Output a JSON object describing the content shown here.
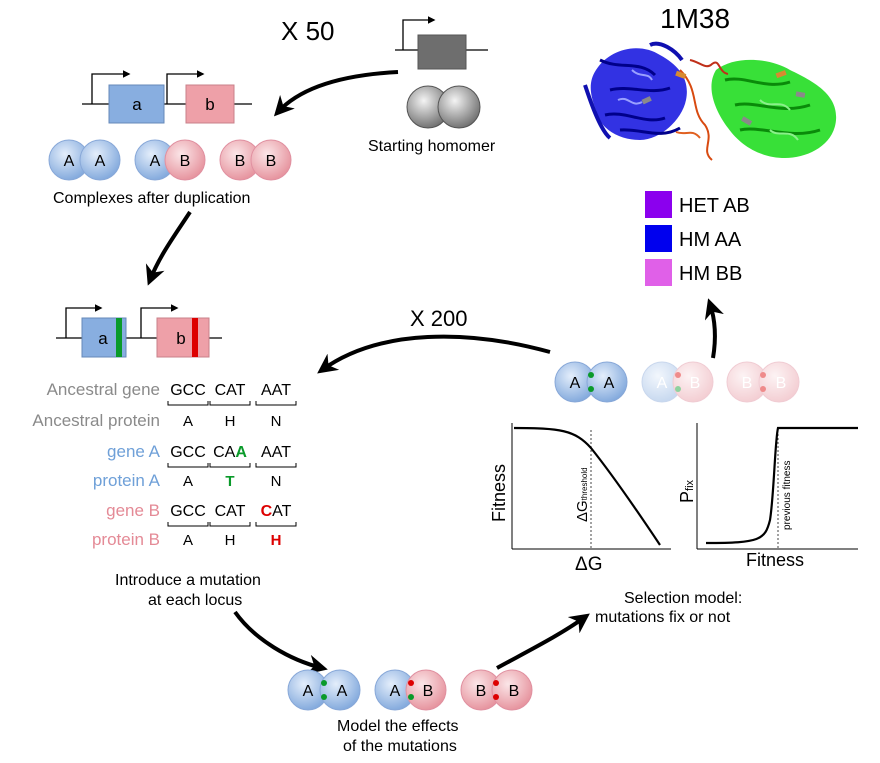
{
  "labels": {
    "x50": "X 50",
    "x200": "X 200",
    "pdb_id": "1M38",
    "starting_homomer": "Starting homomer",
    "complexes_after_duplication": "Complexes after duplication",
    "gene_a": "a",
    "gene_b": "b",
    "subunit_a": "A",
    "subunit_b": "B",
    "introduce_line1": "Introduce a mutation",
    "introduce_line2": "at each locus",
    "model_line1": "Model the effects",
    "model_line2": "of the mutations",
    "selection_line1": "Selection model:",
    "selection_line2": "mutations fix or not"
  },
  "legend": [
    {
      "label": "HET AB",
      "color": "#8b00ee"
    },
    {
      "label": "HM AA",
      "color": "#0000ee"
    },
    {
      "label": "HM BB",
      "color": "#e060e8"
    }
  ],
  "sequence_table": {
    "rows": [
      {
        "label": "Ancestral gene",
        "color": "#8a8a8a",
        "codons": [
          "GCC",
          "CAT",
          "AAT"
        ],
        "kind": "gene"
      },
      {
        "label": "Ancestral protein",
        "color": "#8a8a8a",
        "codons": [
          "A",
          "H",
          "N"
        ],
        "kind": "protein"
      },
      {
        "label": "gene A",
        "color": "#6fa0d8",
        "codons": [
          "GCC",
          "CAA",
          "AAT"
        ],
        "kind": "gene"
      },
      {
        "label": "protein A",
        "color": "#6fa0d8",
        "codons": [
          "A",
          "T",
          "N"
        ],
        "kind": "protein"
      },
      {
        "label": "gene B",
        "color": "#e48a96",
        "codons": [
          "GCC",
          "CAT",
          "CAT"
        ],
        "kind": "gene"
      },
      {
        "label": "protein B",
        "color": "#e48a96",
        "codons": [
          "A",
          "H",
          "H"
        ],
        "kind": "protein"
      }
    ],
    "mutation_a_color": "#0a9a2a",
    "mutation_b_color": "#dd0000"
  },
  "fitness_plot": {
    "ylabel": "Fitness",
    "xlabel": "ΔG",
    "threshold_label": "ΔG",
    "threshold_sub": "threshold"
  },
  "pfix_plot": {
    "ylabel": "P",
    "ylabel_sub": "fix",
    "xlabel": "Fitness",
    "previous_label": "previous fitness"
  },
  "colors": {
    "blue_box": "#88aee0",
    "pink_box": "#eea0a8",
    "gray_box": "#6e6e6e",
    "green_mark": "#0a9a2a",
    "red_mark": "#dd0000"
  }
}
